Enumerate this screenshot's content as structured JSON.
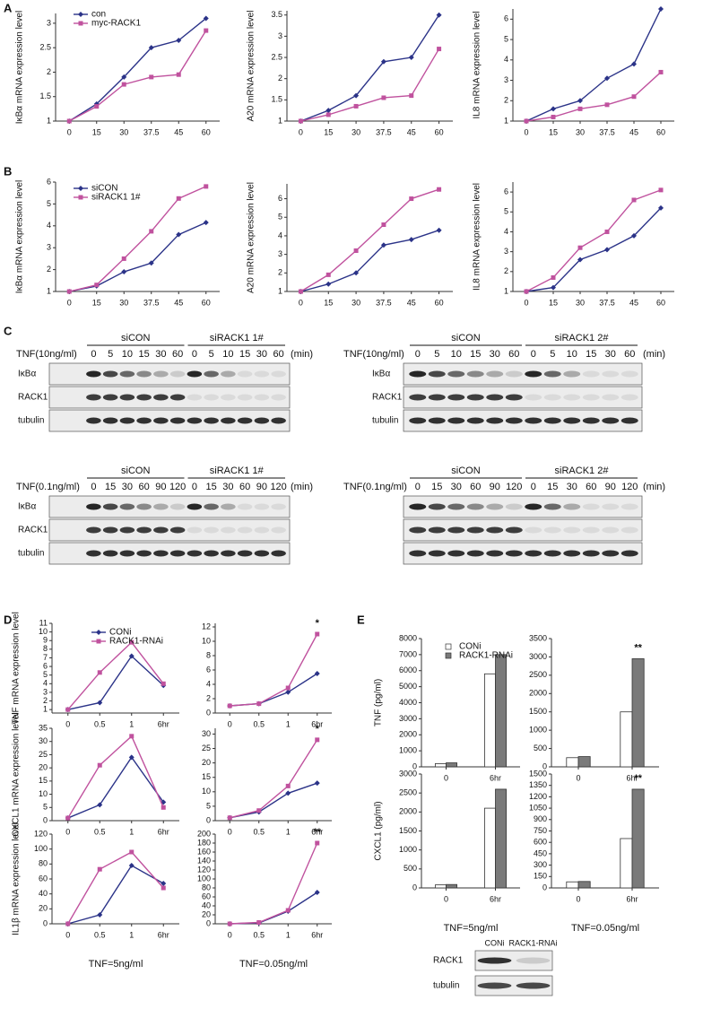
{
  "panel_labels": [
    "A",
    "B",
    "C",
    "D",
    "E"
  ],
  "chart_data": [
    {
      "type": "line",
      "y_label": "IκBα mRNA expression level",
      "categories": [
        "0",
        "15",
        "30",
        "37.5",
        "45",
        "60"
      ],
      "ylim": [
        1,
        3.2
      ],
      "yticks": [
        1,
        1.5,
        2,
        2.5,
        3
      ],
      "legend": true,
      "series": [
        {
          "name": "con",
          "color": "#2b3388",
          "values": [
            1.0,
            1.35,
            1.9,
            2.5,
            2.65,
            3.1
          ]
        },
        {
          "name": "myc-RACK1",
          "color": "#c0529e",
          "values": [
            1.0,
            1.3,
            1.75,
            1.9,
            1.95,
            2.85
          ]
        }
      ]
    },
    {
      "type": "line",
      "y_label": "A20 mRNA expression level",
      "categories": [
        "0",
        "15",
        "30",
        "37.5",
        "45",
        "60"
      ],
      "ylim": [
        1,
        3.6
      ],
      "yticks": [
        1,
        1.5,
        2,
        2.5,
        3,
        3.5
      ],
      "series": [
        {
          "color": "#2b3388",
          "values": [
            1.0,
            1.25,
            1.6,
            2.4,
            2.5,
            3.5
          ]
        },
        {
          "color": "#c0529e",
          "values": [
            1.0,
            1.15,
            1.35,
            1.55,
            1.6,
            2.7
          ]
        }
      ]
    },
    {
      "type": "line",
      "y_label": "IL8 mRNA expression level",
      "categories": [
        "0",
        "15",
        "30",
        "37.5",
        "45",
        "60"
      ],
      "ylim": [
        1,
        6.5
      ],
      "yticks": [
        1,
        2,
        3,
        4,
        5,
        6
      ],
      "series": [
        {
          "color": "#2b3388",
          "values": [
            1.0,
            1.6,
            2.0,
            3.1,
            3.8,
            6.5
          ]
        },
        {
          "color": "#c0529e",
          "values": [
            1.0,
            1.2,
            1.6,
            1.8,
            2.2,
            3.4
          ]
        }
      ]
    },
    {
      "type": "line",
      "y_label": "IκBα mRNA expression level",
      "categories": [
        "0",
        "15",
        "30",
        "37.5",
        "45",
        "60"
      ],
      "ylim": [
        1,
        6
      ],
      "yticks": [
        1,
        2,
        3,
        4,
        5,
        6
      ],
      "legend": true,
      "series": [
        {
          "name": "siCON",
          "color": "#2b3388",
          "values": [
            1.0,
            1.25,
            1.9,
            2.3,
            3.6,
            4.15
          ]
        },
        {
          "name": "siRACK1 1#",
          "color": "#c0529e",
          "values": [
            1.0,
            1.3,
            2.5,
            3.75,
            5.25,
            5.8
          ]
        }
      ]
    },
    {
      "type": "line",
      "y_label": "A20 mRNA expression level",
      "categories": [
        "0",
        "15",
        "30",
        "37.5",
        "45",
        "60"
      ],
      "ylim": [
        1,
        6.8
      ],
      "yticks": [
        1,
        2,
        3,
        4,
        5,
        6
      ],
      "series": [
        {
          "color": "#2b3388",
          "values": [
            1.0,
            1.4,
            2.0,
            3.5,
            3.8,
            4.3
          ]
        },
        {
          "color": "#c0529e",
          "values": [
            1.0,
            1.9,
            3.2,
            4.6,
            6.0,
            6.5
          ]
        }
      ]
    },
    {
      "type": "line",
      "y_label": "IL8 mRNA expression level",
      "categories": [
        "0",
        "15",
        "30",
        "37.5",
        "45",
        "60"
      ],
      "ylim": [
        1,
        6.5
      ],
      "yticks": [
        1,
        2,
        3,
        4,
        5,
        6
      ],
      "series": [
        {
          "color": "#2b3388",
          "values": [
            1.0,
            1.2,
            2.6,
            3.1,
            3.8,
            5.2
          ]
        },
        {
          "color": "#c0529e",
          "values": [
            1.0,
            1.7,
            3.2,
            4.0,
            5.6,
            6.1
          ]
        }
      ]
    },
    {
      "type": "line",
      "y_label": "TNF mRNA expression level",
      "categories": [
        "0",
        "0.5",
        "1",
        "6hr"
      ],
      "ylim": [
        0.6,
        11
      ],
      "yticks": [
        1,
        2,
        3,
        4,
        5,
        6,
        7,
        8,
        9,
        10,
        11
      ],
      "legend": true,
      "series": [
        {
          "name": "CONi",
          "color": "#2b3388",
          "values": [
            1.0,
            1.8,
            7.2,
            3.8
          ]
        },
        {
          "name": "RACK1-RNAi",
          "color": "#c0529e",
          "values": [
            1.0,
            5.3,
            8.8,
            4.0
          ]
        }
      ]
    },
    {
      "type": "line",
      "categories": [
        "0",
        "0.5",
        "1",
        "6hr"
      ],
      "ylim": [
        0,
        12.5
      ],
      "yticks": [
        0,
        2,
        4,
        6,
        8,
        10,
        12
      ],
      "annotation": "*",
      "series": [
        {
          "color": "#2b3388",
          "values": [
            1.0,
            1.3,
            2.9,
            5.5
          ]
        },
        {
          "color": "#c0529e",
          "values": [
            1.0,
            1.3,
            3.5,
            11
          ]
        }
      ]
    },
    {
      "type": "line",
      "y_label": "CXCL1 mRNA expression level",
      "categories": [
        "0",
        "0.5",
        "1",
        "6hr"
      ],
      "ylim": [
        0,
        35
      ],
      "yticks": [
        0,
        5,
        10,
        15,
        20,
        25,
        30,
        35
      ],
      "series": [
        {
          "color": "#2b3388",
          "values": [
            1,
            6,
            24,
            7
          ]
        },
        {
          "color": "#c0529e",
          "values": [
            1,
            21,
            32,
            5
          ]
        }
      ]
    },
    {
      "type": "line",
      "categories": [
        "0",
        "0.5",
        "1",
        "6hr"
      ],
      "ylim": [
        0,
        32
      ],
      "yticks": [
        0,
        5,
        10,
        15,
        20,
        25,
        30
      ],
      "annotation": "*",
      "series": [
        {
          "color": "#2b3388",
          "values": [
            1,
            3,
            9.5,
            13
          ]
        },
        {
          "color": "#c0529e",
          "values": [
            1,
            3.5,
            12,
            28
          ]
        }
      ]
    },
    {
      "type": "line",
      "y_label": "IL1β mRNA expression level",
      "x_label": "TNF=5ng/ml",
      "categories": [
        "0",
        "0.5",
        "1",
        "6hr"
      ],
      "ylim": [
        0,
        120
      ],
      "yticks": [
        0,
        20,
        40,
        60,
        80,
        100,
        120
      ],
      "series": [
        {
          "color": "#2b3388",
          "values": [
            0,
            12,
            78,
            54
          ]
        },
        {
          "color": "#c0529e",
          "values": [
            0,
            73,
            96,
            48
          ]
        }
      ]
    },
    {
      "type": "line",
      "x_label": "TNF=0.05ng/ml",
      "categories": [
        "0",
        "0.5",
        "1",
        "6hr"
      ],
      "ylim": [
        0,
        200
      ],
      "yticks": [
        0,
        20,
        40,
        60,
        80,
        100,
        120,
        140,
        160,
        180,
        200
      ],
      "annotation": "**",
      "series": [
        {
          "color": "#2b3388",
          "values": [
            0,
            2,
            28,
            70
          ]
        },
        {
          "color": "#c0529e",
          "values": [
            0,
            3,
            30,
            180
          ]
        }
      ]
    },
    {
      "type": "bar",
      "y_label": "TNF (pg/ml)",
      "categories": [
        "0",
        "6hr"
      ],
      "ylim": [
        0,
        8000
      ],
      "yticks": [
        0,
        1000,
        2000,
        3000,
        4000,
        5000,
        6000,
        7000,
        8000
      ],
      "legend": true,
      "series": [
        {
          "name": "CONi",
          "color": "#ffffff",
          "values": [
            200,
            5800
          ]
        },
        {
          "name": "RACK1-RNAi",
          "color": "#7a7a7a",
          "values": [
            250,
            7000
          ]
        }
      ]
    },
    {
      "type": "bar",
      "categories": [
        "0",
        "6hr"
      ],
      "ylim": [
        0,
        3500
      ],
      "yticks": [
        0,
        500,
        1000,
        1500,
        2000,
        2500,
        3000,
        3500
      ],
      "annotation": "**",
      "series": [
        {
          "color": "#ffffff",
          "values": [
            250,
            1500
          ]
        },
        {
          "color": "#7a7a7a",
          "values": [
            280,
            2950
          ]
        }
      ]
    },
    {
      "type": "bar",
      "y_label": "CXCL1 (pg/ml)",
      "x_label": "TNF=5ng/ml",
      "categories": [
        "0",
        "6hr"
      ],
      "ylim": [
        0,
        3000
      ],
      "yticks": [
        0,
        500,
        1000,
        1500,
        2000,
        2500,
        3000
      ],
      "series": [
        {
          "color": "#ffffff",
          "values": [
            80,
            2100
          ]
        },
        {
          "color": "#7a7a7a",
          "values": [
            90,
            2600
          ]
        }
      ]
    },
    {
      "type": "bar",
      "x_label": "TNF=0.05ng/ml",
      "categories": [
        "0",
        "6hr"
      ],
      "ylim": [
        0,
        1500
      ],
      "yticks": [
        0,
        150,
        300,
        450,
        600,
        750,
        900,
        1050,
        1200,
        1350,
        1500
      ],
      "annotation": "**",
      "series": [
        {
          "color": "#ffffff",
          "values": [
            80,
            650
          ]
        },
        {
          "color": "#7a7a7a",
          "values": [
            85,
            1300
          ]
        }
      ]
    }
  ],
  "blots": [
    {
      "groups": [
        "siCON",
        "siRACK1 1#"
      ],
      "treatment": "TNF(10ng/ml)",
      "times": [
        "0",
        "5",
        "10",
        "15",
        "30",
        "60"
      ],
      "unit": "(min)",
      "rows": [
        "IκBα",
        "RACK1",
        "tubulin"
      ]
    },
    {
      "groups": [
        "siCON",
        "siRACK1 2#"
      ],
      "treatment": "TNF(10ng/ml)",
      "times": [
        "0",
        "5",
        "10",
        "15",
        "30",
        "60"
      ],
      "unit": "(min)",
      "rows": [
        "IκBα",
        "RACK1",
        "tubulin"
      ]
    },
    {
      "groups": [
        "siCON",
        "siRACK1 1#"
      ],
      "treatment": "TNF(0.1ng/ml)",
      "times": [
        "0",
        "15",
        "30",
        "60",
        "90",
        "120"
      ],
      "unit": "(min)",
      "rows": [
        "IκBα",
        "RACK1",
        "tubulin"
      ]
    },
    {
      "groups": [
        "siCON",
        "siRACK1 2#"
      ],
      "treatment": "TNF(0.1ng/ml)",
      "times": [
        "0",
        "15",
        "30",
        "60",
        "90",
        "120"
      ],
      "unit": "(min)"
    },
    {
      "groups": [
        "CONi",
        "RACK1-RNAi"
      ],
      "rows": [
        "RACK1",
        "tubulin"
      ]
    }
  ]
}
